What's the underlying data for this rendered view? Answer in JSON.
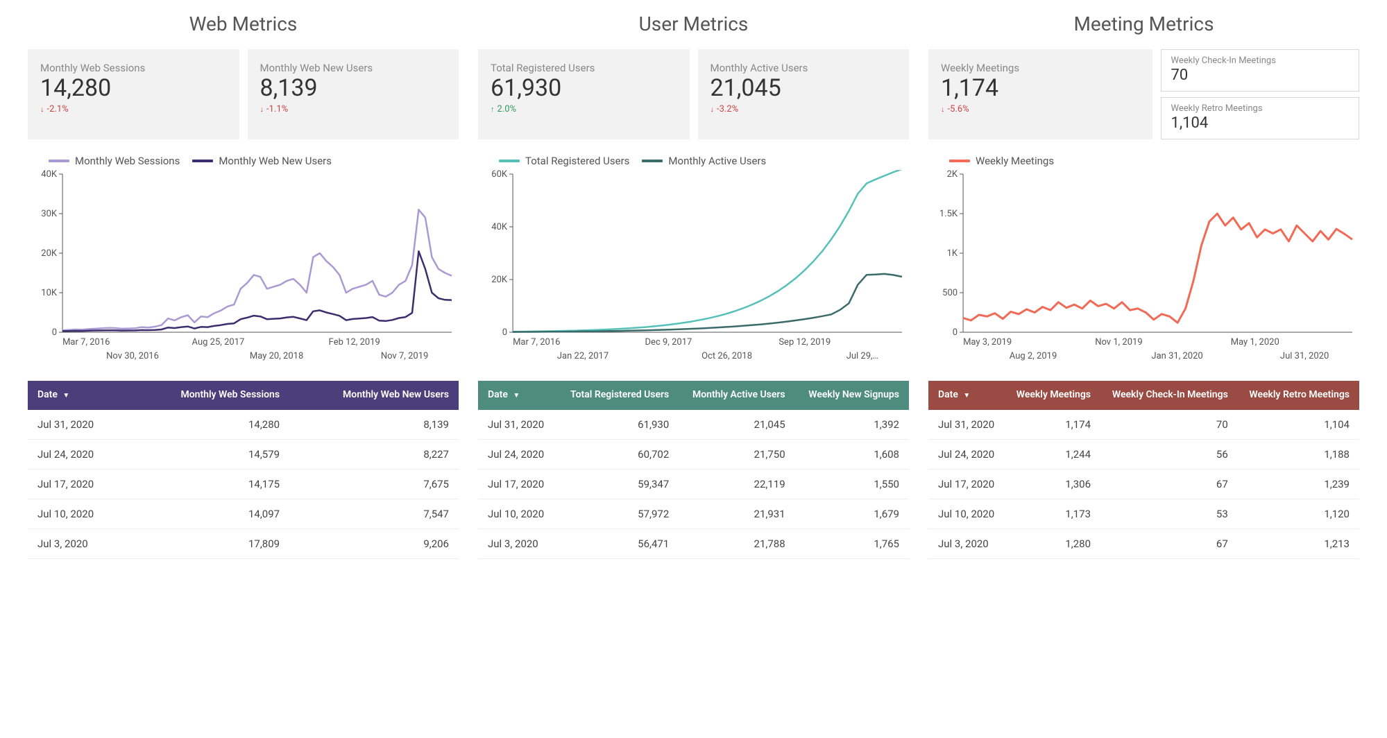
{
  "colors": {
    "card_bg": "#f2f2f2",
    "hdr_web": "#4a3f7a",
    "hdr_user": "#4f8c80",
    "hdr_meet": "#9a4b43",
    "delta_down": "#d14242",
    "delta_up": "#2e9b5b"
  },
  "sections": {
    "web": {
      "title": "Web Metrics",
      "cards": [
        {
          "label": "Monthly Web Sessions",
          "value": "14,280",
          "delta": "-2.1%",
          "dir": "down"
        },
        {
          "label": "Monthly Web New Users",
          "value": "8,139",
          "delta": "-1.1%",
          "dir": "down"
        }
      ],
      "chart": {
        "type": "line",
        "legend": [
          {
            "label": "Monthly Web Sessions",
            "color": "#a89bd4"
          },
          {
            "label": "Monthly Web New Users",
            "color": "#3c2e6e"
          }
        ],
        "y": {
          "min": 0,
          "max": 40000,
          "ticks": [
            0,
            10000,
            20000,
            30000,
            40000
          ],
          "tick_labels": [
            "0",
            "10K",
            "20K",
            "30K",
            "40K"
          ]
        },
        "x_labels_top": [
          "Mar 7, 2016",
          "Aug 25, 2017",
          "Feb 12, 2019"
        ],
        "x_labels_bottom": [
          "Nov 30, 2016",
          "May 20, 2018",
          "Nov 7, 2019"
        ],
        "series": [
          {
            "color": "#a89bd4",
            "width": 2.5,
            "points": [
              500,
              600,
              700,
              650,
              800,
              900,
              1000,
              1100,
              1050,
              900,
              950,
              1000,
              1300,
              1200,
              1400,
              1800,
              3500,
              3000,
              3800,
              4300,
              2500,
              4000,
              3800,
              4800,
              5500,
              6500,
              7000,
              11000,
              12500,
              14500,
              14000,
              11000,
              11500,
              12000,
              13000,
              13500,
              12000,
              10000,
              19000,
              20000,
              18000,
              16500,
              14500,
              10000,
              11000,
              11500,
              12000,
              13000,
              9500,
              9000,
              10000,
              12000,
              13000,
              17000,
              31000,
              29000,
              19000,
              16000,
              15000,
              14280
            ]
          },
          {
            "color": "#3c2e6e",
            "width": 2.5,
            "points": [
              300,
              320,
              350,
              340,
              400,
              430,
              460,
              480,
              470,
              420,
              440,
              460,
              550,
              520,
              580,
              700,
              1200,
              1050,
              1300,
              1450,
              950,
              1350,
              1300,
              1600,
              1800,
              2100,
              2250,
              3300,
              3700,
              4200,
              4000,
              3300,
              3400,
              3500,
              3750,
              3900,
              3500,
              3050,
              5300,
              5550,
              5000,
              4600,
              4150,
              3050,
              3350,
              3450,
              3600,
              3850,
              2950,
              2850,
              3100,
              3600,
              3850,
              4900,
              20500,
              16000,
              10000,
              8600,
              8200,
              8139
            ]
          }
        ]
      },
      "table": {
        "columns": [
          "Date",
          "Monthly Web Sessions",
          "Monthly Web New Users"
        ],
        "rows": [
          [
            "Jul 31, 2020",
            "14,280",
            "8,139"
          ],
          [
            "Jul 24, 2020",
            "14,579",
            "8,227"
          ],
          [
            "Jul 17, 2020",
            "14,175",
            "7,675"
          ],
          [
            "Jul 10, 2020",
            "14,097",
            "7,547"
          ],
          [
            "Jul 3, 2020",
            "17,809",
            "9,206"
          ]
        ]
      }
    },
    "user": {
      "title": "User Metrics",
      "cards": [
        {
          "label": "Total Registered Users",
          "value": "61,930",
          "delta": "2.0%",
          "dir": "up"
        },
        {
          "label": "Monthly Active Users",
          "value": "21,045",
          "delta": "-3.2%",
          "dir": "down"
        }
      ],
      "chart": {
        "type": "line",
        "legend": [
          {
            "label": "Total Registered Users",
            "color": "#55c1b8"
          },
          {
            "label": "Monthly Active Users",
            "color": "#3a6a6a"
          }
        ],
        "y": {
          "min": 0,
          "max": 60000,
          "ticks": [
            0,
            20000,
            40000,
            60000
          ],
          "tick_labels": [
            "0",
            "20K",
            "40K",
            "60K"
          ]
        },
        "x_labels_top": [
          "Mar 7, 2016",
          "Dec 9, 2017",
          "Sep 12, 2019"
        ],
        "x_labels_bottom": [
          "Jan 22, 2017",
          "Oct 26, 2018",
          "Jul 29,…"
        ],
        "series": [
          {
            "color": "#55c1b8",
            "width": 2.5,
            "points": [
              200,
              250,
              300,
              350,
              400,
              450,
              520,
              600,
              700,
              820,
              950,
              1100,
              1280,
              1480,
              1700,
              1960,
              2260,
              2600,
              2990,
              3440,
              3950,
              4540,
              5210,
              5980,
              6870,
              7890,
              9060,
              10390,
              11920,
              13670,
              15660,
              17950,
              20560,
              23540,
              26940,
              30820,
              35250,
              40290,
              46030,
              52560,
              56471,
              57972,
              59347,
              60702,
              61930
            ]
          },
          {
            "color": "#3a6a6a",
            "width": 2.5,
            "points": [
              100,
              120,
              140,
              160,
              185,
              210,
              240,
              275,
              310,
              350,
              400,
              450,
              510,
              575,
              650,
              730,
              820,
              920,
              1030,
              1150,
              1280,
              1430,
              1590,
              1770,
              1970,
              2190,
              2430,
              2690,
              2980,
              3300,
              3650,
              4050,
              4490,
              4970,
              5510,
              6100,
              6760,
              8500,
              11000,
              18000,
              21788,
              21931,
              22119,
              21750,
              21045
            ]
          }
        ]
      },
      "table": {
        "columns": [
          "Date",
          "Total Registered Users",
          "Monthly Active Users",
          "Weekly New Signups"
        ],
        "rows": [
          [
            "Jul 31, 2020",
            "61,930",
            "21,045",
            "1,392"
          ],
          [
            "Jul 24, 2020",
            "60,702",
            "21,750",
            "1,608"
          ],
          [
            "Jul 17, 2020",
            "59,347",
            "22,119",
            "1,550"
          ],
          [
            "Jul 10, 2020",
            "57,972",
            "21,931",
            "1,679"
          ],
          [
            "Jul 3, 2020",
            "56,471",
            "21,788",
            "1,765"
          ]
        ]
      }
    },
    "meet": {
      "title": "Meeting Metrics",
      "cards": [
        {
          "label": "Weekly Meetings",
          "value": "1,174",
          "delta": "-5.6%",
          "dir": "down"
        }
      ],
      "mini_cards": [
        {
          "label": "Weekly Check-In Meetings",
          "value": "70"
        },
        {
          "label": "Weekly Retro Meetings",
          "value": "1,104"
        }
      ],
      "chart": {
        "type": "line",
        "legend": [
          {
            "label": "Weekly Meetings",
            "color": "#f06a55"
          }
        ],
        "y": {
          "min": 0,
          "max": 2000,
          "ticks": [
            0,
            500,
            1000,
            1500,
            2000
          ],
          "tick_labels": [
            "0",
            "500",
            "1K",
            "1.5K",
            "2K"
          ]
        },
        "x_labels_top": [
          "May 3, 2019",
          "Nov 1, 2019",
          "May 1, 2020"
        ],
        "x_labels_bottom": [
          "Aug 2, 2019",
          "Jan 31, 2020",
          "Jul 31, 2020"
        ],
        "series": [
          {
            "color": "#f06a55",
            "width": 3,
            "points": [
              180,
              150,
              220,
              200,
              240,
              170,
              260,
              230,
              290,
              250,
              320,
              280,
              380,
              310,
              350,
              300,
              400,
              330,
              360,
              300,
              380,
              280,
              300,
              250,
              160,
              230,
              200,
              120,
              300,
              650,
              1100,
              1400,
              1500,
              1350,
              1450,
              1300,
              1380,
              1200,
              1300,
              1250,
              1300,
              1150,
              1350,
              1250,
              1150,
              1280,
              1173,
              1306,
              1244,
              1174
            ]
          }
        ]
      },
      "table": {
        "columns": [
          "Date",
          "Weekly Meetings",
          "Weekly Check-In Meetings",
          "Weekly Retro Meetings"
        ],
        "rows": [
          [
            "Jul 31, 2020",
            "1,174",
            "70",
            "1,104"
          ],
          [
            "Jul 24, 2020",
            "1,244",
            "56",
            "1,188"
          ],
          [
            "Jul 17, 2020",
            "1,306",
            "67",
            "1,239"
          ],
          [
            "Jul 10, 2020",
            "1,173",
            "53",
            "1,120"
          ],
          [
            "Jul 3, 2020",
            "1,280",
            "67",
            "1,213"
          ]
        ]
      }
    }
  }
}
